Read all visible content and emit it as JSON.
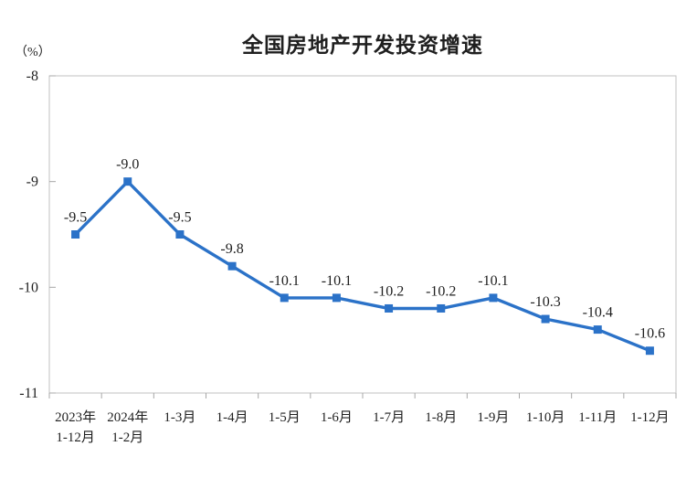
{
  "title": "全国房地产开发投资增速",
  "y_axis_unit": "（%）",
  "chart_data": {
    "type": "line",
    "title": "全国房地产开发投资增速",
    "ylabel": "（%）",
    "xlabel": "",
    "categories": [
      [
        "2023年",
        "1-12月"
      ],
      [
        "2024年",
        "1-2月"
      ],
      [
        "1-3月"
      ],
      [
        "1-4月"
      ],
      [
        "1-5月"
      ],
      [
        "1-6月"
      ],
      [
        "1-7月"
      ],
      [
        "1-8月"
      ],
      [
        "1-9月"
      ],
      [
        "1-10月"
      ],
      [
        "1-11月"
      ],
      [
        "1-12月"
      ]
    ],
    "values": [
      -9.5,
      -9.0,
      -9.5,
      -9.8,
      -10.1,
      -10.1,
      -10.2,
      -10.2,
      -10.1,
      -10.3,
      -10.4,
      -10.6
    ],
    "data_labels": [
      "-9.5",
      "-9.0",
      "-9.5",
      "-9.8",
      "-10.1",
      "-10.1",
      "-10.2",
      "-10.2",
      "-10.1",
      "-10.3",
      "-10.4",
      "-10.6"
    ],
    "ylim": [
      -11,
      -8
    ],
    "y_ticks": [
      -8,
      -9,
      -10,
      -11
    ],
    "grid": false,
    "legend_position": "none",
    "marker": "square",
    "line_color": "#2B72C8",
    "label_color": "#1f1f1f",
    "axis_color": "#c2c2c2",
    "tick_color": "#a8a8a8"
  }
}
